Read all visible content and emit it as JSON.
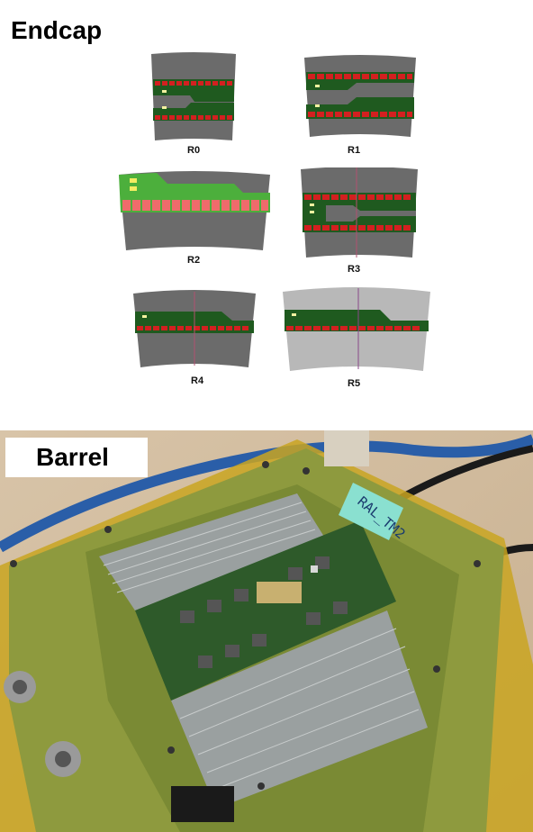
{
  "endcap_title": "Endcap",
  "barrel_title": "Barrel",
  "board_tag": "RAL_TM2",
  "modules": [
    {
      "label": "R0"
    },
    {
      "label": "R1"
    },
    {
      "label": "R2"
    },
    {
      "label": "R3"
    },
    {
      "label": "R4"
    },
    {
      "label": "R5"
    }
  ],
  "colors": {
    "sensor_dark": "#6b6b6b",
    "sensor_light": "#b8b8b8",
    "hybrid_green": "#1f5a1f",
    "hybrid_light_green": "#4caf3c",
    "chip_red": "#d32020",
    "chip_pink": "#ef6b6b",
    "pcb_green": "#8e9a3e",
    "kapton_yellow": "#c9a521"
  }
}
